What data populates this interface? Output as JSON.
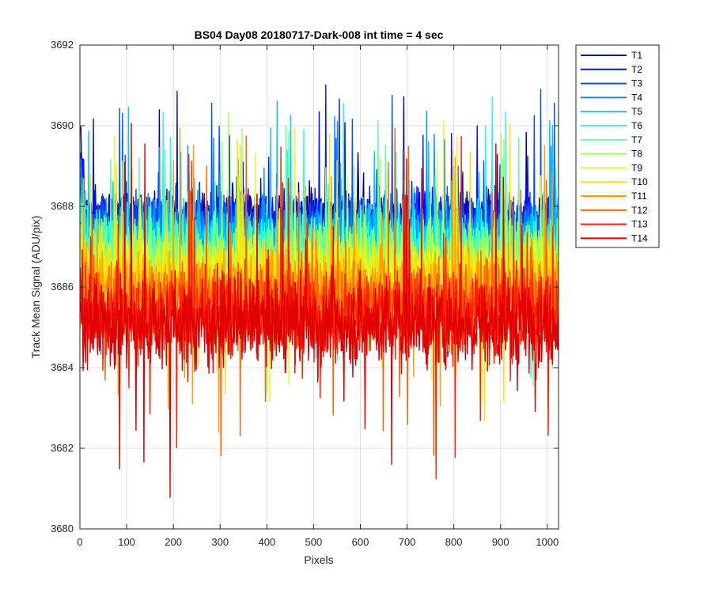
{
  "chart_data": {
    "type": "line",
    "title": "BS04 Day08 20180717-Dark-008 int time = 4 sec",
    "xlabel": "Pixels",
    "ylabel": "Track Mean Signal (ADU/pix)",
    "xlim": [
      0,
      1024
    ],
    "ylim": [
      3680,
      3692
    ],
    "xticks": [
      0,
      100,
      200,
      300,
      400,
      500,
      600,
      700,
      800,
      900,
      1000
    ],
    "yticks": [
      3680,
      3682,
      3684,
      3686,
      3688,
      3690,
      3692
    ],
    "grid": true,
    "legend_position": "outside-top-right",
    "series": [
      {
        "name": "T1",
        "color": "#00008f",
        "mean": 3687.7,
        "spread": 0.55
      },
      {
        "name": "T2",
        "color": "#0010ff",
        "mean": 3687.6,
        "spread": 0.55
      },
      {
        "name": "T3",
        "color": "#0050ff",
        "mean": 3687.5,
        "spread": 0.55
      },
      {
        "name": "T4",
        "color": "#0090ff",
        "mean": 3687.3,
        "spread": 0.55
      },
      {
        "name": "T5",
        "color": "#00c8ff",
        "mean": 3687.2,
        "spread": 0.55
      },
      {
        "name": "T6",
        "color": "#20ffdf",
        "mean": 3687.0,
        "spread": 0.6
      },
      {
        "name": "T7",
        "color": "#60ff9f",
        "mean": 3686.8,
        "spread": 0.6
      },
      {
        "name": "T8",
        "color": "#9fff60",
        "mean": 3686.6,
        "spread": 0.6
      },
      {
        "name": "T9",
        "color": "#dfff20",
        "mean": 3686.4,
        "spread": 0.6
      },
      {
        "name": "T10",
        "color": "#ffe000",
        "mean": 3686.2,
        "spread": 0.65
      },
      {
        "name": "T11",
        "color": "#ffa000",
        "mean": 3685.9,
        "spread": 0.65
      },
      {
        "name": "T12",
        "color": "#ff6000",
        "mean": 3685.6,
        "spread": 0.7
      },
      {
        "name": "T13",
        "color": "#ff2000",
        "mean": 3685.3,
        "spread": 0.75
      },
      {
        "name": "T14",
        "color": "#e00000",
        "mean": 3685.1,
        "spread": 0.8
      }
    ]
  }
}
